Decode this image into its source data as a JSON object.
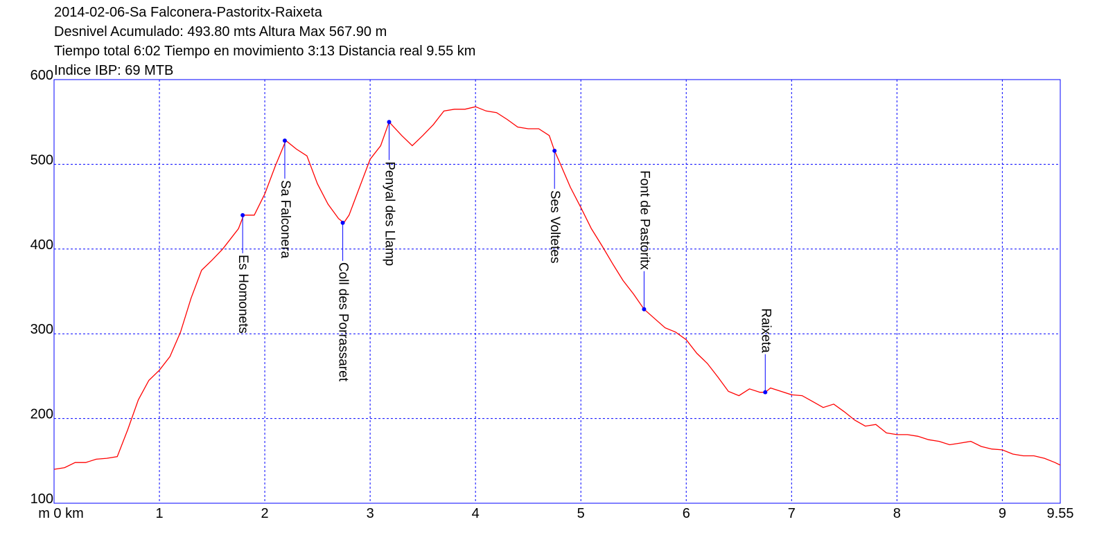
{
  "chart_data": {
    "type": "line",
    "title_lines": [
      "2014-02-06-Sa Falconera-Pastoritx-Raixeta",
      "Desnivel Acumulado: 493.80 mts  Altura Max 567.90 m",
      "Tiempo total 6:02 Tiempo en movimiento 3:13 Distancia real 9.55 km",
      "Indice IBP: 69 MTB"
    ],
    "x": [
      0,
      0.1,
      0.2,
      0.3,
      0.4,
      0.5,
      0.6,
      0.7,
      0.8,
      0.9,
      1.0,
      1.1,
      1.2,
      1.3,
      1.4,
      1.5,
      1.6,
      1.7,
      1.75,
      1.8,
      1.9,
      2.0,
      2.1,
      2.2,
      2.3,
      2.4,
      2.5,
      2.6,
      2.7,
      2.75,
      2.8,
      2.9,
      3.0,
      3.1,
      3.18,
      3.3,
      3.4,
      3.5,
      3.6,
      3.7,
      3.8,
      3.9,
      4.0,
      4.1,
      4.2,
      4.3,
      4.4,
      4.5,
      4.6,
      4.7,
      4.75,
      4.8,
      4.9,
      5.0,
      5.1,
      5.2,
      5.3,
      5.4,
      5.5,
      5.6,
      5.7,
      5.8,
      5.9,
      6.0,
      6.1,
      6.2,
      6.3,
      6.4,
      6.5,
      6.6,
      6.7,
      6.75,
      6.8,
      6.9,
      7.0,
      7.1,
      7.2,
      7.3,
      7.4,
      7.5,
      7.6,
      7.7,
      7.8,
      7.9,
      8.0,
      8.1,
      8.2,
      8.3,
      8.4,
      8.5,
      8.6,
      8.7,
      8.8,
      8.9,
      9.0,
      9.1,
      9.2,
      9.3,
      9.4,
      9.5,
      9.55
    ],
    "series": [
      {
        "color": "#ff0000",
        "values": [
          140,
          142,
          148,
          148,
          152,
          153,
          155,
          187,
          222,
          245,
          257,
          273,
          302,
          342,
          375,
          387,
          400,
          416,
          424,
          440,
          440,
          465,
          498,
          528,
          518,
          510,
          477,
          453,
          436,
          431,
          440,
          473,
          506,
          522,
          550,
          534,
          522,
          534,
          547,
          563,
          565,
          565,
          568,
          563,
          561,
          553,
          544,
          542,
          542,
          534,
          516,
          502,
          473,
          449,
          424,
          404,
          383,
          363,
          347,
          329,
          318,
          307,
          302,
          293,
          277,
          265,
          249,
          232,
          227,
          235,
          231,
          231,
          236,
          232,
          228,
          227,
          220,
          213,
          217,
          208,
          198,
          191,
          193,
          183,
          181,
          181,
          179,
          175,
          173,
          169,
          171,
          173,
          167,
          164,
          163,
          158,
          156,
          156,
          153,
          148,
          145
        ]
      }
    ],
    "waypoints": [
      {
        "label": "Es Homonets",
        "x": 1.79,
        "y": 440,
        "position": "below"
      },
      {
        "label": "Sa Falconera",
        "x": 2.19,
        "y": 528,
        "position": "below"
      },
      {
        "label": "Coll des Porrassaret",
        "x": 2.74,
        "y": 431,
        "position": "below"
      },
      {
        "label": "Penyal des Llamp",
        "x": 3.18,
        "y": 550,
        "position": "below"
      },
      {
        "label": "Ses Voltetes",
        "x": 4.75,
        "y": 516,
        "position": "below"
      },
      {
        "label": "Font de Pastoritx",
        "x": 5.6,
        "y": 329,
        "position": "above"
      },
      {
        "label": "Raixeta",
        "x": 6.75,
        "y": 231,
        "position": "above"
      }
    ],
    "waypoint_color": "#0000ff",
    "xlim": [
      0,
      9.55
    ],
    "ylim": [
      100,
      600
    ],
    "xticks": [
      {
        "value": 0,
        "label": "m 0 km"
      },
      1,
      2,
      3,
      4,
      5,
      6,
      7,
      8,
      9,
      9.55
    ],
    "yticks": [
      100,
      200,
      300,
      400,
      500,
      600
    ],
    "grid": true
  }
}
